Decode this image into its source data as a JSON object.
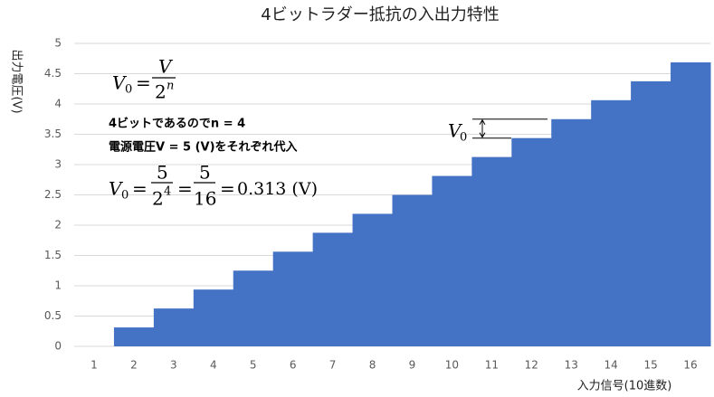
{
  "chart_data": {
    "type": "bar",
    "title": "4ビットラダー抵抗の入出力特性",
    "x_label": "入力信号(10進数)",
    "y_label": "出力電圧(V)",
    "categories": [
      "1",
      "2",
      "3",
      "4",
      "5",
      "6",
      "7",
      "8",
      "9",
      "10",
      "11",
      "12",
      "13",
      "14",
      "15",
      "16"
    ],
    "values": [
      0,
      0.3125,
      0.625,
      0.9375,
      1.25,
      1.5625,
      1.875,
      2.1875,
      2.5,
      2.8125,
      3.125,
      3.4375,
      3.75,
      4.0625,
      4.375,
      4.6875
    ],
    "color": "#4472c4",
    "ylim": [
      0,
      5
    ],
    "yticks": [
      0,
      0.5,
      1,
      1.5,
      2,
      2.5,
      3,
      3.5,
      4,
      4.5,
      5
    ],
    "grid": true,
    "annotations": {
      "formula_1": {
        "lhs": "V",
        "lhs_sub": "0",
        "eq": "=",
        "num": "V",
        "den": "2",
        "den_sup": "n"
      },
      "note_1": "4ビットであるのでn = 4",
      "note_2": "電源電圧V = 5 (V)をそれぞれ代入",
      "formula_2": {
        "lhs": "V",
        "lhs_sub": "0",
        "eq": "=",
        "num_1": "5",
        "den_1": "2",
        "den_1_sup": "4",
        "num_2": "5",
        "den_2": "16",
        "result": "0.313 (V)"
      },
      "step_label": {
        "text": "V",
        "sub": "0"
      }
    }
  }
}
